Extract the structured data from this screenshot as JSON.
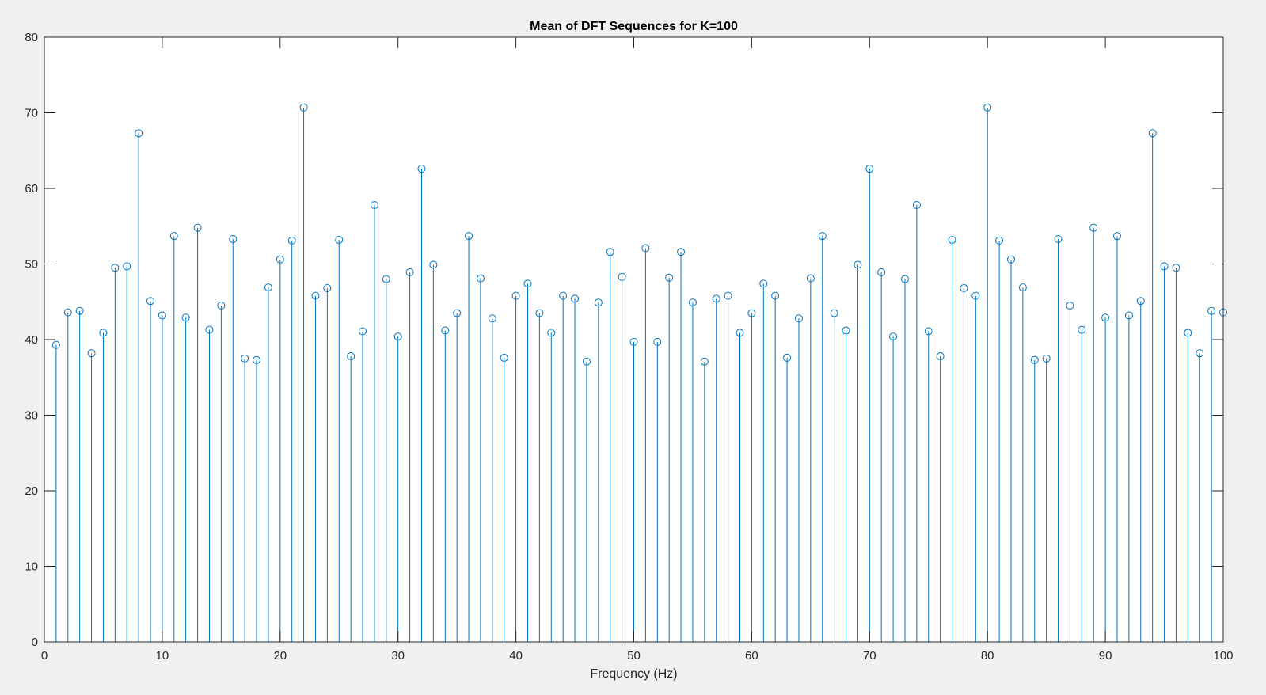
{
  "colors": {
    "figure_background": "#f0f0f0",
    "axes_background": "#ffffff",
    "axis_color": "#262626",
    "series_color": "#0072bd"
  },
  "chart_data": {
    "type": "stem",
    "title": "Mean of DFT Sequences for K=100",
    "xlabel": "Frequency (Hz)",
    "ylabel": "",
    "xlim": [
      0,
      100
    ],
    "ylim": [
      0,
      80
    ],
    "grid": false,
    "legend": "none",
    "marker": "circle",
    "xticks": [
      0,
      10,
      20,
      30,
      40,
      50,
      60,
      70,
      80,
      90,
      100
    ],
    "yticks": [
      0,
      10,
      20,
      30,
      40,
      50,
      60,
      70,
      80
    ],
    "x": [
      1,
      2,
      3,
      4,
      5,
      6,
      7,
      8,
      9,
      10,
      11,
      12,
      13,
      14,
      15,
      16,
      17,
      18,
      19,
      20,
      21,
      22,
      23,
      24,
      25,
      26,
      27,
      28,
      29,
      30,
      31,
      32,
      33,
      34,
      35,
      36,
      37,
      38,
      39,
      40,
      41,
      42,
      43,
      44,
      45,
      46,
      47,
      48,
      49,
      50,
      51,
      52,
      53,
      54,
      55,
      56,
      57,
      58,
      59,
      60,
      61,
      62,
      63,
      64,
      65,
      66,
      67,
      68,
      69,
      70,
      71,
      72,
      73,
      74,
      75,
      76,
      77,
      78,
      79,
      80,
      81,
      82,
      83,
      84,
      85,
      86,
      87,
      88,
      89,
      90,
      91,
      92,
      93,
      94,
      95,
      96,
      97,
      98,
      99,
      100
    ],
    "values": [
      39.3,
      43.6,
      43.8,
      38.2,
      40.9,
      49.5,
      49.7,
      67.3,
      45.1,
      43.2,
      53.7,
      42.9,
      54.8,
      41.3,
      44.5,
      53.3,
      37.5,
      37.3,
      46.9,
      50.6,
      53.1,
      70.7,
      45.8,
      46.8,
      53.2,
      37.8,
      41.1,
      57.8,
      48.0,
      40.4,
      48.9,
      62.6,
      49.9,
      41.2,
      43.5,
      53.7,
      48.1,
      42.8,
      37.6,
      45.8,
      47.4,
      43.5,
      40.9,
      45.8,
      45.4,
      37.1,
      44.9,
      51.6,
      48.3,
      39.7,
      52.1,
      39.7,
      48.2,
      51.6,
      44.9,
      37.1,
      45.4,
      45.8,
      40.9,
      43.5,
      47.4,
      45.8,
      37.6,
      42.8,
      48.1,
      53.7,
      43.5,
      41.2,
      49.9,
      62.6,
      48.9,
      40.4,
      48.0,
      57.8,
      41.1,
      37.8,
      53.2,
      46.8,
      45.8,
      70.7,
      53.1,
      50.6,
      46.9,
      37.3,
      37.5,
      53.3,
      44.5,
      41.3,
      54.8,
      42.9,
      53.7,
      43.2,
      45.1,
      67.3,
      49.7,
      49.5,
      40.9,
      38.2,
      43.8,
      43.6
    ]
  }
}
